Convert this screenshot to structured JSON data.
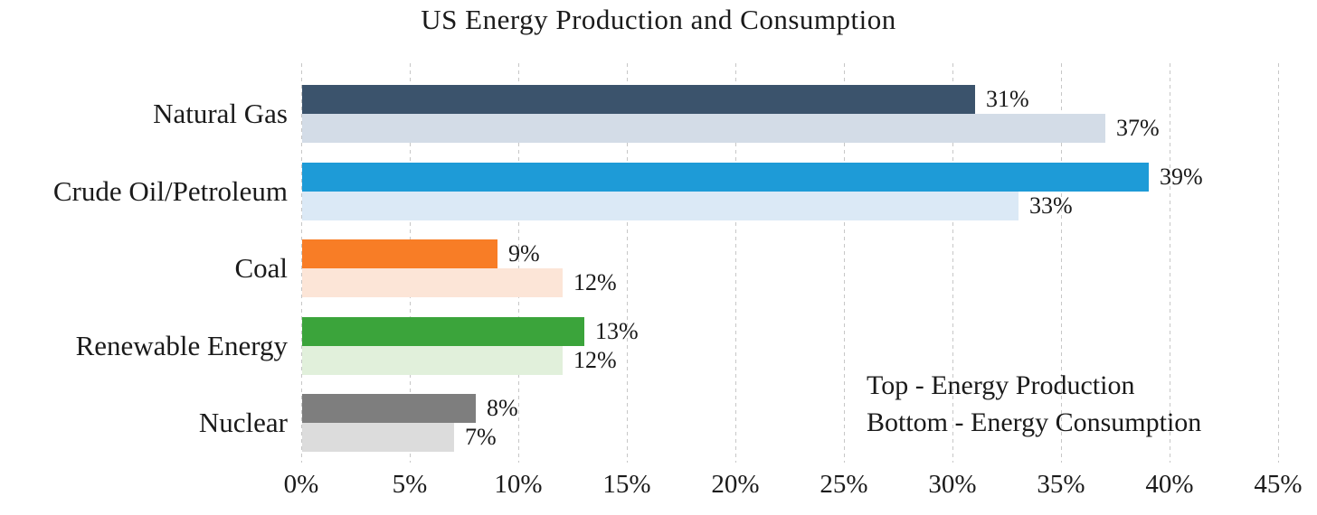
{
  "chart_data": {
    "type": "bar",
    "orientation": "horizontal",
    "title": "US Energy Production and Consumption",
    "categories": [
      "Natural Gas",
      "Crude Oil/Petroleum",
      "Coal",
      "Renewable Energy",
      "Nuclear"
    ],
    "series": [
      {
        "name": "Energy Production",
        "position": "Top",
        "values": [
          31,
          39,
          9,
          13,
          8
        ],
        "labels": [
          "31%",
          "39%",
          "9%",
          "13%",
          "8%"
        ],
        "colors": [
          "#3B536C",
          "#1E9BD7",
          "#F87D26",
          "#3BA43B",
          "#7E7E7E"
        ]
      },
      {
        "name": "Energy Consumption",
        "position": "Bottom",
        "values": [
          37,
          33,
          12,
          12,
          7
        ],
        "labels": [
          "37%",
          "33%",
          "12%",
          "12%",
          "7%"
        ],
        "colors": [
          "#D3DCE7",
          "#DBE9F6",
          "#FCE5D7",
          "#E1F0DB",
          "#DCDCDC"
        ]
      }
    ],
    "x_axis": {
      "min": 0,
      "max": 45,
      "tick_step": 5,
      "ticks": [
        "0%",
        "5%",
        "10%",
        "15%",
        "20%",
        "25%",
        "30%",
        "35%",
        "40%",
        "45%"
      ],
      "grid": "dashed-vertical"
    },
    "annotation": {
      "line1": "Top - Energy Production",
      "line2": "Bottom - Energy Consumption"
    },
    "legend_position": "inside-bottom-right",
    "text_color": "#1a1a1a",
    "gridline_color": "#c7c7c7"
  }
}
